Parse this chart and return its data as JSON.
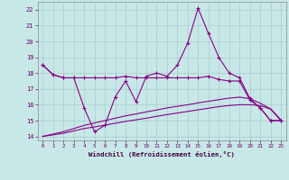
{
  "xlabel": "Windchill (Refroidissement éolien,°C)",
  "bg_color": "#c8e8e8",
  "grid_color": "#a8cccc",
  "line_color": "#880088",
  "xlim": [
    -0.5,
    23.5
  ],
  "ylim": [
    13.75,
    22.5
  ],
  "yticks": [
    14,
    15,
    16,
    17,
    18,
    19,
    20,
    21,
    22
  ],
  "xticks": [
    0,
    1,
    2,
    3,
    4,
    5,
    6,
    7,
    8,
    9,
    10,
    11,
    12,
    13,
    14,
    15,
    16,
    17,
    18,
    19,
    20,
    21,
    22,
    23
  ],
  "line_spiky": [
    18.5,
    17.9,
    17.7,
    17.7,
    15.8,
    14.3,
    14.7,
    16.5,
    17.5,
    16.2,
    17.8,
    18.0,
    17.8,
    18.5,
    19.9,
    22.1,
    20.5,
    19.0,
    18.0,
    17.7,
    16.4,
    15.8,
    15.0,
    15.0
  ],
  "line_flat": [
    18.5,
    17.9,
    17.7,
    17.7,
    17.7,
    17.7,
    17.7,
    17.7,
    17.8,
    17.7,
    17.7,
    17.7,
    17.7,
    17.7,
    17.7,
    17.7,
    17.8,
    17.6,
    17.5,
    17.5,
    16.3,
    15.8,
    15.0,
    15.0
  ],
  "line_low1": [
    14.0,
    14.1,
    14.2,
    14.35,
    14.5,
    14.6,
    14.72,
    14.83,
    14.95,
    15.05,
    15.15,
    15.27,
    15.38,
    15.48,
    15.58,
    15.68,
    15.78,
    15.88,
    15.95,
    16.0,
    16.0,
    15.95,
    15.72,
    15.0
  ],
  "line_low2": [
    14.0,
    14.15,
    14.3,
    14.5,
    14.7,
    14.85,
    15.0,
    15.15,
    15.3,
    15.42,
    15.55,
    15.67,
    15.8,
    15.9,
    16.0,
    16.12,
    16.22,
    16.32,
    16.42,
    16.48,
    16.38,
    16.1,
    15.75,
    15.05
  ]
}
